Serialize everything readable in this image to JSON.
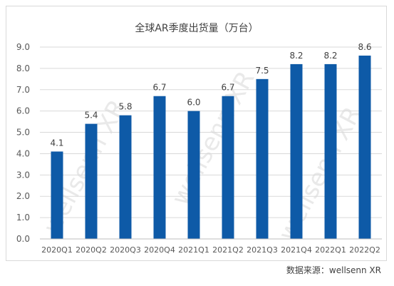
{
  "chart_data": {
    "type": "bar",
    "title": "全球AR季度出货量（万台）",
    "categories": [
      "2020Q1",
      "2020Q2",
      "2020Q3",
      "2020Q4",
      "2021Q1",
      "2021Q2",
      "2021Q3",
      "2021Q4",
      "2022Q1",
      "2022Q2"
    ],
    "values": [
      4.1,
      5.4,
      5.8,
      6.7,
      6.0,
      6.7,
      7.5,
      8.2,
      8.2,
      8.6
    ],
    "data_labels": [
      "4.1",
      "5.4",
      "5.8",
      "6.7",
      "6.0",
      "6.7",
      "7.5",
      "8.2",
      "8.2",
      "8.6"
    ],
    "y_ticks": [
      "0.0",
      "1.0",
      "2.0",
      "3.0",
      "4.0",
      "5.0",
      "6.0",
      "7.0",
      "8.0",
      "9.0"
    ],
    "ylim": [
      0,
      9
    ],
    "xlabel": "",
    "ylabel": "",
    "grid": true,
    "legend": "none",
    "bar_color": "#0e5aa7",
    "watermark": "wellsenn XR"
  },
  "source_note": "数据来源：wellsenn XR"
}
